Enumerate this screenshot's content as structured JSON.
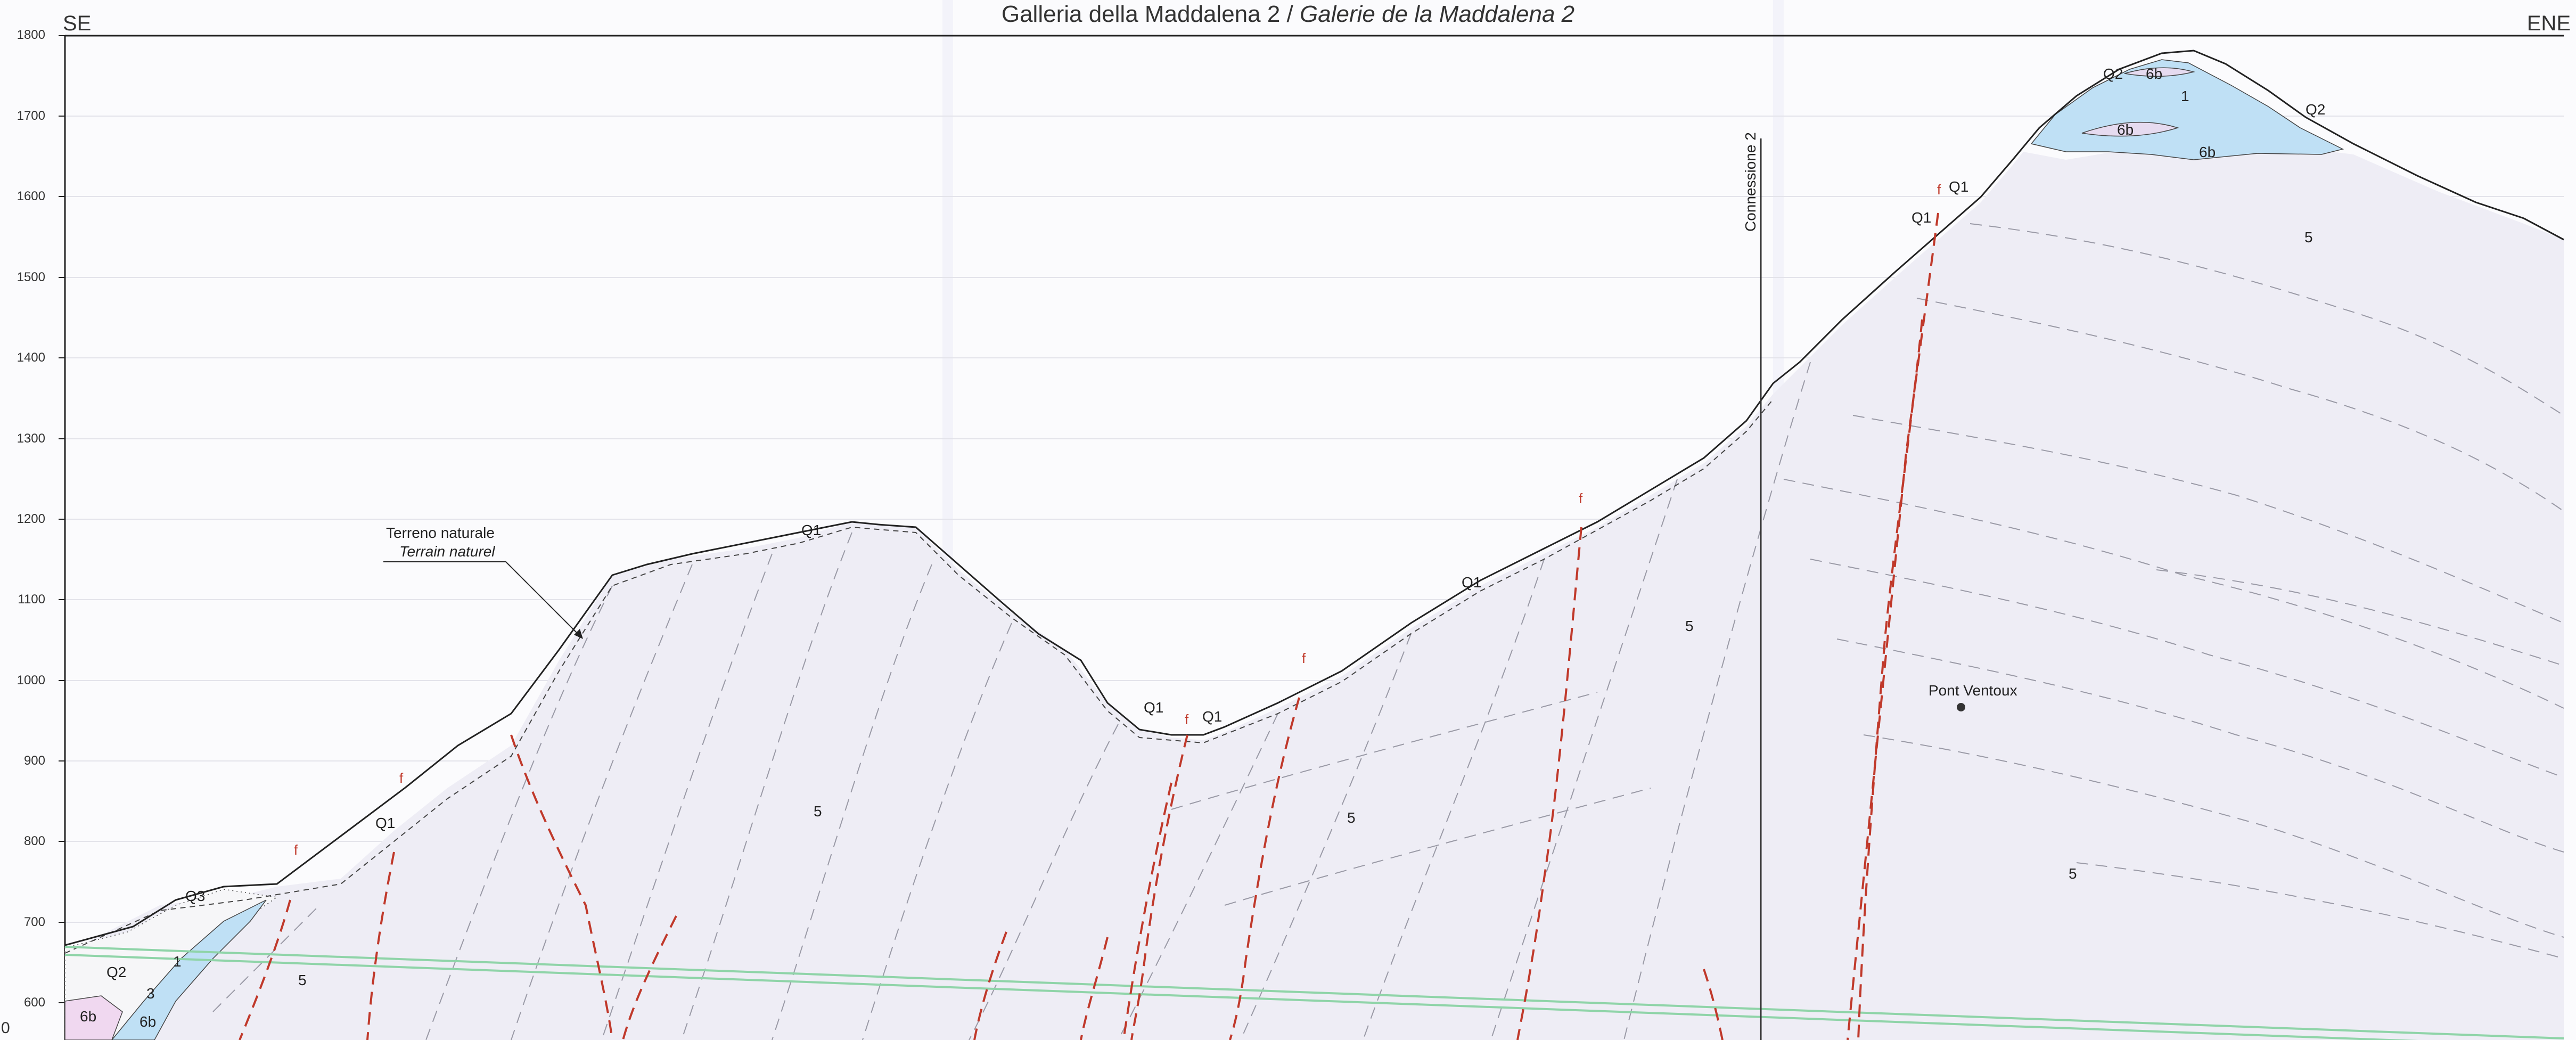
{
  "title": {
    "it": "Galleria della Maddalena 2",
    "sep": " / ",
    "fr": "Galerie de la Maddalena 2"
  },
  "orientation": {
    "left": "SE",
    "right": "ENE"
  },
  "axis": {
    "ticks": [
      "1800",
      "1700",
      "1600",
      "1500",
      "1400",
      "1300",
      "1200",
      "1100",
      "1000",
      "900",
      "800",
      "700",
      "600"
    ],
    "origin_label": "0"
  },
  "labels": {
    "terrain_it": "Terreno naturale",
    "terrain_fr": "Terrain naturel",
    "connection": "Connessione 2",
    "pont_ventoux": "Pont Ventoux",
    "q1": "Q1",
    "q2": "Q2",
    "q3": "Q3",
    "u1": "1",
    "u3": "3",
    "u5": "5",
    "u6b": "6b",
    "fault": "f"
  },
  "colors": {
    "bedrock_fill": "#eeedf5",
    "glacial_fill": "#bfe0f5",
    "fault_line": "#c0392b",
    "tunnel_line": "#8fd4a8",
    "terrain_line": "#222222"
  }
}
